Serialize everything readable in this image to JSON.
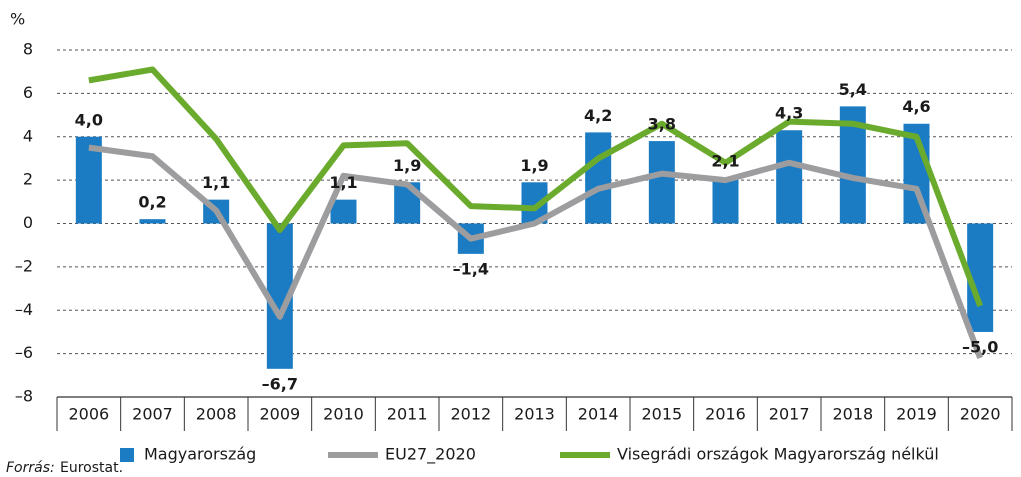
{
  "chart_data": {
    "type": "bar",
    "y_unit_label": "%",
    "categories": [
      "2006",
      "2007",
      "2008",
      "2009",
      "2010",
      "2011",
      "2012",
      "2013",
      "2014",
      "2015",
      "2016",
      "2017",
      "2018",
      "2019",
      "2020"
    ],
    "series": [
      {
        "name": "Magyarország",
        "type": "bar",
        "color": "#1b7cc3",
        "values": [
          4.0,
          0.2,
          1.1,
          -6.7,
          1.1,
          1.9,
          -1.4,
          1.9,
          4.2,
          3.8,
          2.1,
          4.3,
          5.4,
          4.6,
          -5.0
        ],
        "value_labels": [
          "4,0",
          "0,2",
          "1,1",
          "–6,7",
          "1,1",
          "1,9",
          "–1,4",
          "1,9",
          "4,2",
          "3,8",
          "2,1",
          "4,3",
          "5,4",
          "4,6",
          "–5,0"
        ]
      },
      {
        "name": "EU27_2020",
        "type": "line",
        "color": "#9d9d9f",
        "values": [
          3.5,
          3.1,
          0.6,
          -4.3,
          2.2,
          1.8,
          -0.7,
          0.0,
          1.6,
          2.3,
          2.0,
          2.8,
          2.1,
          1.6,
          -6.2
        ]
      },
      {
        "name": "Visegrádi országok Magyarország nélkül",
        "type": "line",
        "color": "#6aab2e",
        "values": [
          6.6,
          7.1,
          3.9,
          -0.3,
          3.6,
          3.7,
          0.8,
          0.7,
          3.0,
          4.6,
          2.8,
          4.7,
          4.6,
          4.0,
          -3.8
        ]
      }
    ],
    "ylim": [
      -8,
      8
    ],
    "yticks": [
      {
        "value": -8,
        "label": "–8"
      },
      {
        "value": -6,
        "label": "–6"
      },
      {
        "value": -4,
        "label": "–4"
      },
      {
        "value": -2,
        "label": "–2"
      },
      0,
      2,
      4,
      6,
      8
    ],
    "grid": true,
    "source_label": "Forrás:",
    "source": "Eurostat."
  }
}
